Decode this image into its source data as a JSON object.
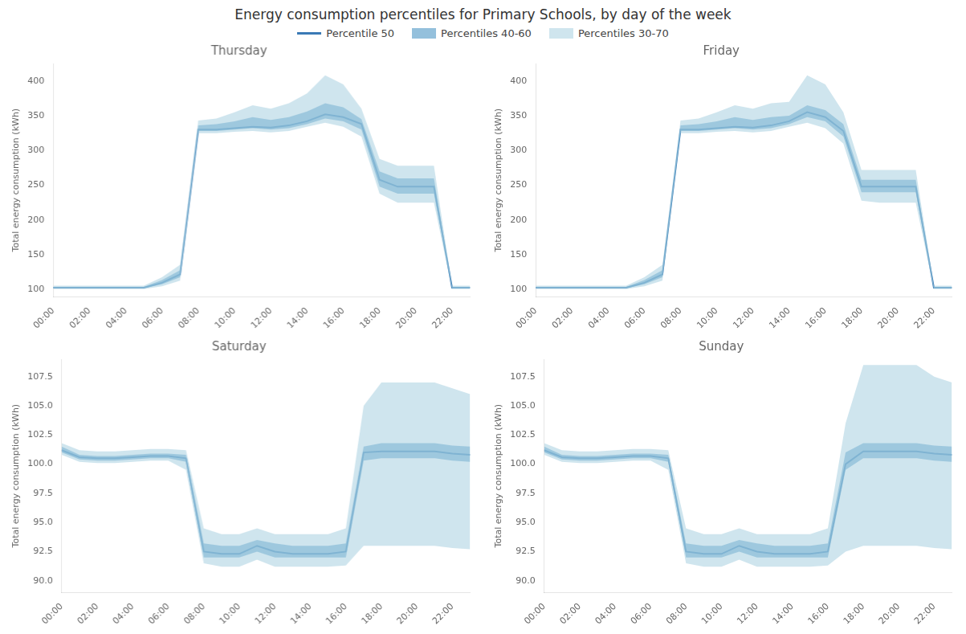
{
  "title": "Energy consumption percentiles for Primary Schools, by day of the week",
  "legend": "top",
  "chart_data": [
    {
      "type": "line",
      "title": "Thursday",
      "ylabel": "Total energy consumption (kWh)",
      "grid": false,
      "x": [
        0,
        1,
        2,
        3,
        4,
        5,
        6,
        7,
        8,
        9,
        10,
        11,
        12,
        13,
        14,
        15,
        16,
        17,
        18,
        19,
        20,
        21,
        22,
        23
      ],
      "xlim": [
        0,
        23
      ],
      "xticks": [
        {
          "value": 0,
          "label": "00:00"
        },
        {
          "value": 2,
          "label": "02:00"
        },
        {
          "value": 4,
          "label": "04:00"
        },
        {
          "value": 6,
          "label": "06:00"
        },
        {
          "value": 8,
          "label": "08:00"
        },
        {
          "value": 10,
          "label": "10:00"
        },
        {
          "value": 12,
          "label": "12:00"
        },
        {
          "value": 14,
          "label": "14:00"
        },
        {
          "value": 16,
          "label": "16:00"
        },
        {
          "value": 18,
          "label": "18:00"
        },
        {
          "value": 20,
          "label": "20:00"
        },
        {
          "value": 22,
          "label": "22:00"
        }
      ],
      "ylim": [
        90,
        425
      ],
      "yticks": [
        100,
        150,
        200,
        250,
        300,
        350,
        400
      ],
      "series": [
        {
          "name": "Percentile 50",
          "type": "line",
          "color": "#3a7ab5",
          "values": [
            103,
            103,
            103,
            103,
            103,
            103,
            110,
            122,
            330,
            330,
            332,
            334,
            333,
            336,
            342,
            352,
            348,
            338,
            258,
            248,
            248,
            248,
            103,
            103
          ]
        },
        {
          "name": "Percentiles 40-60",
          "type": "band",
          "color": "#5b9ec9",
          "low": [
            102,
            102,
            102,
            102,
            102,
            102,
            108,
            118,
            328,
            328,
            330,
            332,
            330,
            332,
            338,
            346,
            342,
            330,
            248,
            238,
            238,
            238,
            102,
            102
          ],
          "high": [
            104,
            104,
            104,
            104,
            104,
            104,
            114,
            128,
            336,
            338,
            342,
            348,
            344,
            348,
            356,
            368,
            362,
            345,
            270,
            260,
            260,
            260,
            104,
            104
          ]
        },
        {
          "name": "Percentiles 30-70",
          "type": "band",
          "color": "#a8cfe0",
          "low": [
            101,
            101,
            101,
            101,
            101,
            101,
            105,
            113,
            325,
            325,
            327,
            328,
            326,
            328,
            334,
            340,
            334,
            320,
            238,
            225,
            225,
            225,
            101,
            101
          ],
          "high": [
            106,
            106,
            106,
            106,
            106,
            106,
            118,
            136,
            343,
            346,
            355,
            365,
            360,
            368,
            382,
            408,
            395,
            360,
            288,
            278,
            278,
            278,
            106,
            106
          ]
        }
      ]
    },
    {
      "type": "line",
      "title": "Friday",
      "ylabel": "Total energy consumption (kWh)",
      "grid": false,
      "x": [
        0,
        1,
        2,
        3,
        4,
        5,
        6,
        7,
        8,
        9,
        10,
        11,
        12,
        13,
        14,
        15,
        16,
        17,
        18,
        19,
        20,
        21,
        22,
        23
      ],
      "xlim": [
        0,
        23
      ],
      "xticks": [
        {
          "value": 0,
          "label": "00:00"
        },
        {
          "value": 2,
          "label": "02:00"
        },
        {
          "value": 4,
          "label": "04:00"
        },
        {
          "value": 6,
          "label": "06:00"
        },
        {
          "value": 8,
          "label": "08:00"
        },
        {
          "value": 10,
          "label": "10:00"
        },
        {
          "value": 12,
          "label": "12:00"
        },
        {
          "value": 14,
          "label": "14:00"
        },
        {
          "value": 16,
          "label": "16:00"
        },
        {
          "value": 18,
          "label": "18:00"
        },
        {
          "value": 20,
          "label": "20:00"
        },
        {
          "value": 22,
          "label": "22:00"
        }
      ],
      "ylim": [
        90,
        425
      ],
      "yticks": [
        100,
        150,
        200,
        250,
        300,
        350,
        400
      ],
      "series": [
        {
          "name": "Percentile 50",
          "type": "line",
          "color": "#3a7ab5",
          "values": [
            103,
            103,
            103,
            103,
            103,
            103,
            110,
            122,
            330,
            330,
            332,
            334,
            333,
            336,
            342,
            355,
            348,
            328,
            248,
            248,
            248,
            248,
            103,
            103
          ]
        },
        {
          "name": "Percentiles 40-60",
          "type": "band",
          "color": "#5b9ec9",
          "low": [
            102,
            102,
            102,
            102,
            102,
            102,
            108,
            118,
            328,
            328,
            330,
            332,
            330,
            332,
            338,
            348,
            342,
            320,
            240,
            240,
            240,
            240,
            102,
            102
          ],
          "high": [
            104,
            104,
            104,
            104,
            104,
            104,
            114,
            128,
            336,
            338,
            342,
            348,
            344,
            348,
            350,
            365,
            358,
            338,
            258,
            258,
            258,
            258,
            104,
            104
          ]
        },
        {
          "name": "Percentiles 30-70",
          "type": "band",
          "color": "#a8cfe0",
          "low": [
            101,
            101,
            101,
            101,
            101,
            101,
            105,
            113,
            325,
            325,
            327,
            328,
            326,
            328,
            334,
            340,
            332,
            310,
            228,
            225,
            225,
            225,
            101,
            101
          ],
          "high": [
            106,
            106,
            106,
            106,
            106,
            106,
            118,
            136,
            343,
            346,
            355,
            365,
            360,
            368,
            370,
            408,
            395,
            355,
            272,
            272,
            272,
            272,
            106,
            106
          ]
        }
      ]
    },
    {
      "type": "line",
      "title": "Saturday",
      "ylabel": "Total energy consumption (kWh)",
      "grid": false,
      "x": [
        0,
        1,
        2,
        3,
        4,
        5,
        6,
        7,
        8,
        9,
        10,
        11,
        12,
        13,
        14,
        15,
        16,
        17,
        18,
        19,
        20,
        21,
        22,
        23
      ],
      "xlim": [
        0,
        23
      ],
      "xticks": [
        {
          "value": 0,
          "label": "00:00"
        },
        {
          "value": 2,
          "label": "02:00"
        },
        {
          "value": 4,
          "label": "04:00"
        },
        {
          "value": 6,
          "label": "06:00"
        },
        {
          "value": 8,
          "label": "08:00"
        },
        {
          "value": 10,
          "label": "10:00"
        },
        {
          "value": 12,
          "label": "12:00"
        },
        {
          "value": 14,
          "label": "14:00"
        },
        {
          "value": 16,
          "label": "16:00"
        },
        {
          "value": 18,
          "label": "18:00"
        },
        {
          "value": 20,
          "label": "20:00"
        },
        {
          "value": 22,
          "label": "22:00"
        }
      ],
      "ylim": [
        89.0,
        109
      ],
      "yticks": [
        {
          "value": 90.0,
          "label": "90.0"
        },
        92.5,
        {
          "value": 95.0,
          "label": "95.0"
        },
        97.5,
        {
          "value": 100.0,
          "label": "100.0"
        },
        102.5,
        {
          "value": 105.0,
          "label": "105.0"
        },
        107.5
      ],
      "series": [
        {
          "name": "Percentile 50",
          "type": "line",
          "color": "#3a7ab5",
          "values": [
            101.2,
            100.6,
            100.5,
            100.5,
            100.6,
            100.7,
            100.7,
            100.5,
            92.5,
            92.3,
            92.3,
            93.0,
            92.5,
            92.3,
            92.3,
            92.3,
            92.5,
            101.0,
            101.1,
            101.1,
            101.1,
            101.1,
            100.9,
            100.8
          ]
        },
        {
          "name": "Percentiles 40-60",
          "type": "band",
          "color": "#5b9ec9",
          "low": [
            101.0,
            100.4,
            100.3,
            100.3,
            100.4,
            100.5,
            100.5,
            100.2,
            92.0,
            92.0,
            92.0,
            92.5,
            92.0,
            92.0,
            92.0,
            92.0,
            92.0,
            100.3,
            100.5,
            100.5,
            100.5,
            100.5,
            100.3,
            100.2
          ],
          "high": [
            101.5,
            100.8,
            100.7,
            100.7,
            100.8,
            100.9,
            100.9,
            100.8,
            93.2,
            93.0,
            93.0,
            93.5,
            93.2,
            93.0,
            93.0,
            93.0,
            93.2,
            101.5,
            101.8,
            101.8,
            101.8,
            101.8,
            101.6,
            101.5
          ]
        },
        {
          "name": "Percentiles 30-70",
          "type": "band",
          "color": "#a8cfe0",
          "low": [
            100.8,
            100.2,
            100.1,
            100.1,
            100.2,
            100.3,
            100.3,
            99.5,
            91.5,
            91.2,
            91.2,
            91.8,
            91.2,
            91.2,
            91.2,
            91.2,
            91.3,
            93.0,
            93.0,
            93.0,
            93.0,
            93.0,
            92.8,
            92.7
          ],
          "high": [
            101.8,
            101.2,
            101.1,
            101.1,
            101.2,
            101.3,
            101.3,
            101.2,
            94.5,
            94.0,
            94.0,
            94.5,
            94.0,
            94.0,
            94.0,
            94.0,
            94.5,
            105.0,
            107.0,
            107.0,
            107.0,
            107.0,
            106.5,
            106.0
          ]
        }
      ]
    },
    {
      "type": "line",
      "title": "Sunday",
      "ylabel": "Total energy consumption (kWh)",
      "grid": false,
      "x": [
        0,
        1,
        2,
        3,
        4,
        5,
        6,
        7,
        8,
        9,
        10,
        11,
        12,
        13,
        14,
        15,
        16,
        17,
        18,
        19,
        20,
        21,
        22,
        23
      ],
      "xlim": [
        0,
        23
      ],
      "xticks": [
        {
          "value": 0,
          "label": "00:00"
        },
        {
          "value": 2,
          "label": "02:00"
        },
        {
          "value": 4,
          "label": "04:00"
        },
        {
          "value": 6,
          "label": "06:00"
        },
        {
          "value": 8,
          "label": "08:00"
        },
        {
          "value": 10,
          "label": "10:00"
        },
        {
          "value": 12,
          "label": "12:00"
        },
        {
          "value": 14,
          "label": "14:00"
        },
        {
          "value": 16,
          "label": "16:00"
        },
        {
          "value": 18,
          "label": "18:00"
        },
        {
          "value": 20,
          "label": "20:00"
        },
        {
          "value": 22,
          "label": "22:00"
        }
      ],
      "ylim": [
        89.0,
        109
      ],
      "yticks": [
        {
          "value": 90.0,
          "label": "90.0"
        },
        92.5,
        {
          "value": 95.0,
          "label": "95.0"
        },
        97.5,
        {
          "value": 100.0,
          "label": "100.0"
        },
        102.5,
        {
          "value": 105.0,
          "label": "105.0"
        },
        107.5
      ],
      "series": [
        {
          "name": "Percentile 50",
          "type": "line",
          "color": "#3a7ab5",
          "values": [
            101.2,
            100.6,
            100.5,
            100.5,
            100.6,
            100.7,
            100.7,
            100.5,
            92.5,
            92.3,
            92.3,
            93.0,
            92.5,
            92.3,
            92.3,
            92.3,
            92.5,
            100.0,
            101.1,
            101.1,
            101.1,
            101.1,
            100.9,
            100.8
          ]
        },
        {
          "name": "Percentiles 40-60",
          "type": "band",
          "color": "#5b9ec9",
          "low": [
            101.0,
            100.4,
            100.3,
            100.3,
            100.4,
            100.5,
            100.5,
            100.2,
            92.0,
            92.0,
            92.0,
            92.5,
            92.0,
            92.0,
            92.0,
            92.0,
            92.0,
            99.5,
            100.5,
            100.5,
            100.5,
            100.5,
            100.3,
            100.2
          ],
          "high": [
            101.5,
            100.8,
            100.7,
            100.7,
            100.8,
            100.9,
            100.9,
            100.8,
            93.2,
            93.0,
            93.0,
            93.5,
            93.2,
            93.0,
            93.0,
            93.0,
            93.2,
            101.0,
            101.8,
            101.8,
            101.8,
            101.8,
            101.6,
            101.5
          ]
        },
        {
          "name": "Percentiles 30-70",
          "type": "band",
          "color": "#a8cfe0",
          "low": [
            100.8,
            100.2,
            100.1,
            100.1,
            100.2,
            100.3,
            100.3,
            99.5,
            91.5,
            91.2,
            91.2,
            91.8,
            91.2,
            91.2,
            91.2,
            91.2,
            91.3,
            92.5,
            93.0,
            93.0,
            93.0,
            93.0,
            92.8,
            92.7
          ],
          "high": [
            101.8,
            101.2,
            101.1,
            101.1,
            101.2,
            101.3,
            101.3,
            101.2,
            94.5,
            94.0,
            94.0,
            94.5,
            94.0,
            94.0,
            94.0,
            94.0,
            94.5,
            103.5,
            108.5,
            108.5,
            108.5,
            108.5,
            107.5,
            107.0
          ]
        }
      ]
    }
  ]
}
